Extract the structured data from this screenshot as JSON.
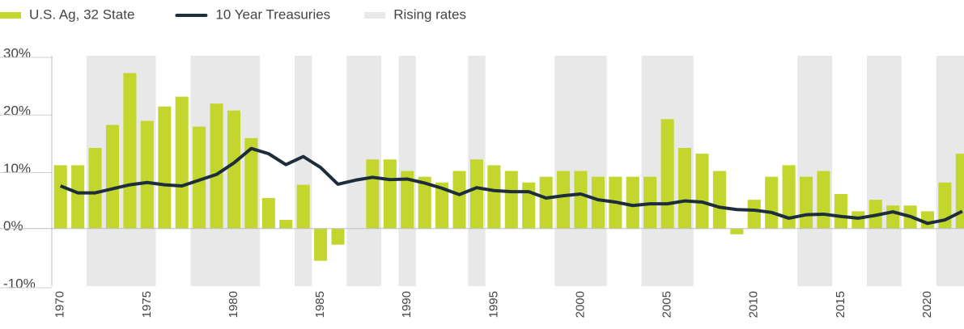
{
  "chart_data": {
    "type": "bar-line",
    "x": [
      1970,
      1971,
      1972,
      1973,
      1974,
      1975,
      1976,
      1977,
      1978,
      1979,
      1980,
      1981,
      1982,
      1983,
      1984,
      1985,
      1986,
      1987,
      1988,
      1989,
      1990,
      1991,
      1992,
      1993,
      1994,
      1995,
      1996,
      1997,
      1998,
      1999,
      2000,
      2001,
      2002,
      2003,
      2004,
      2005,
      2006,
      2007,
      2008,
      2009,
      2010,
      2011,
      2012,
      2013,
      2014,
      2015,
      2016,
      2017,
      2018,
      2019,
      2020,
      2021,
      2022
    ],
    "series": [
      {
        "name": "U.S. Ag, 32 State",
        "type": "bar",
        "color": "#c3d62e",
        "values": [
          11,
          11,
          14,
          18,
          27,
          18.7,
          21.2,
          22.9,
          17.7,
          21.7,
          20.5,
          15.7,
          5.3,
          1.5,
          7.6,
          -5.6,
          -2.8,
          0,
          12,
          12,
          10,
          9,
          8,
          10,
          12,
          11,
          10,
          8,
          9,
          10,
          10,
          9,
          9,
          9,
          9,
          19,
          14,
          13,
          10,
          -1,
          5,
          9,
          11,
          9,
          10,
          6,
          3,
          5,
          4,
          4,
          3,
          8,
          13
        ]
      },
      {
        "name": "10 Year Treasuries",
        "type": "line",
        "color": "#1e2d3b",
        "values": [
          7.4,
          6.2,
          6.2,
          6.9,
          7.6,
          8.0,
          7.6,
          7.4,
          8.4,
          9.4,
          11.4,
          13.9,
          13.0,
          11.1,
          12.5,
          10.6,
          7.7,
          8.4,
          8.9,
          8.5,
          8.6,
          7.9,
          7.0,
          5.9,
          7.1,
          6.6,
          6.4,
          6.4,
          5.3,
          5.7,
          6.0,
          5.0,
          4.6,
          4.0,
          4.3,
          4.3,
          4.8,
          4.6,
          3.7,
          3.3,
          3.2,
          2.8,
          1.8,
          2.4,
          2.5,
          2.1,
          1.8,
          2.3,
          2.9,
          2.1,
          0.9,
          1.5,
          3.0
        ]
      },
      {
        "name": "Rising rates",
        "type": "span",
        "color": "#e8e8e8",
        "spans": [
          [
            1972,
            1975
          ],
          [
            1978,
            1981
          ],
          [
            1984,
            1984
          ],
          [
            1987,
            1988
          ],
          [
            1990,
            1990
          ],
          [
            1994,
            1994
          ],
          [
            1999,
            2001
          ],
          [
            2004,
            2006
          ],
          [
            2013,
            2014
          ],
          [
            2017,
            2018
          ],
          [
            2021,
            2022
          ]
        ]
      }
    ],
    "xlim": [
      1969.5,
      2022.1
    ],
    "xticks": [
      1970,
      1975,
      1980,
      1985,
      1990,
      1995,
      2000,
      2005,
      2010,
      2015,
      2020
    ],
    "ylim": [
      -10,
      30
    ],
    "yticks": [
      {
        "value": -10,
        "label": "-10%"
      },
      {
        "value": 0,
        "label": "0%"
      },
      {
        "value": 10,
        "label": "10%"
      },
      {
        "value": 20,
        "label": "20%"
      },
      {
        "value": 30,
        "label": "30%"
      }
    ]
  }
}
